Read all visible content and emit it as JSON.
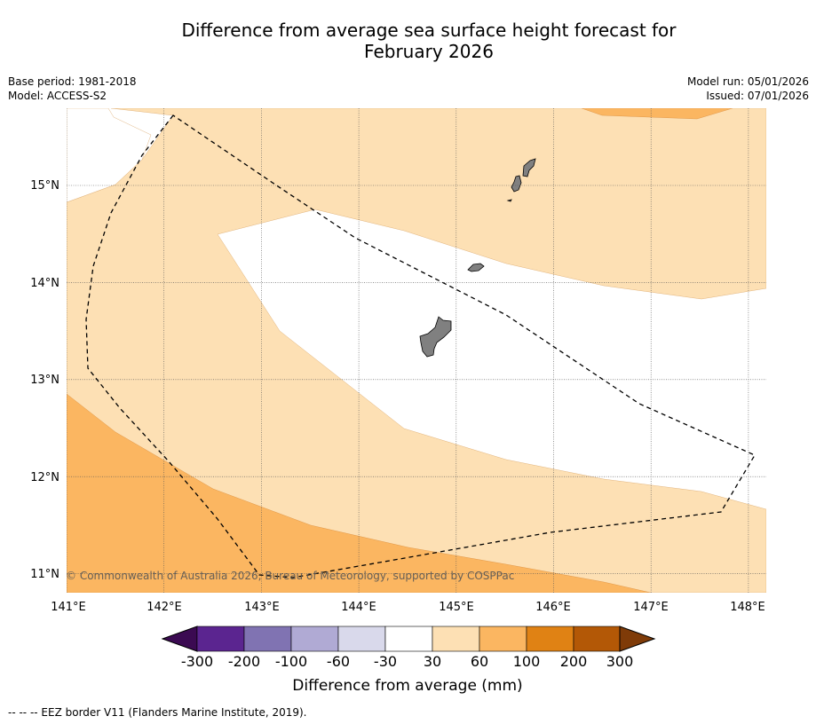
{
  "title": {
    "line1": "Difference from average sea surface height forecast for",
    "line2": "February 2026"
  },
  "meta": {
    "base_period": "Base period: 1981-2018",
    "model": "Model: ACCESS-S2",
    "model_run": "Model run: 05/01/2026",
    "issued": "Issued: 07/01/2026"
  },
  "map": {
    "lon_labels": [
      "141°E",
      "142°E",
      "143°E",
      "144°E",
      "145°E",
      "146°E",
      "147°E",
      "148°E"
    ],
    "lat_labels": [
      "15°N",
      "14°N",
      "13°N",
      "12°N",
      "11°N"
    ],
    "copyright": "© Commonwealth of Australia 2026, Bureau of Meteorology, supported by COSPPac",
    "land_color": "#808080",
    "fill_colors": {
      "30_60": "#fde0b4",
      "60_100": "#fbb661",
      "neutral": "#ffffff"
    }
  },
  "colorbar": {
    "labels": [
      "-300",
      "-200",
      "-100",
      "-60",
      "-30",
      "30",
      "60",
      "100",
      "200",
      "300"
    ],
    "colors": [
      "#3b0a52",
      "#5b2590",
      "#8073b2",
      "#b0aad4",
      "#d9d9eb",
      "#ffffff",
      "#fde0b4",
      "#fbb661",
      "#e08214",
      "#b35806",
      "#7f3b08"
    ],
    "title": "Difference from average (mm)"
  },
  "footer": "--  --  -- EEZ border V11 (Flanders Marine Institute, 2019)."
}
